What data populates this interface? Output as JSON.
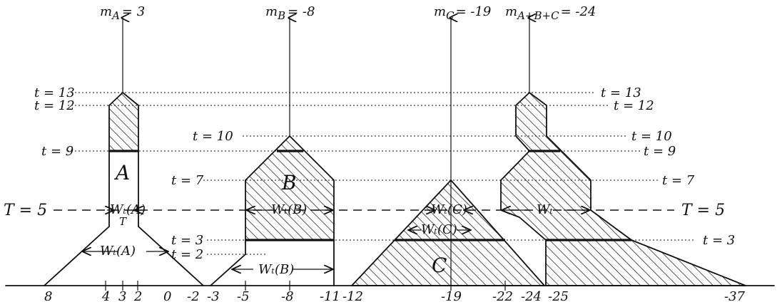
{
  "trees": {
    "A": {
      "label": "A",
      "m_sym": "m",
      "m_sub": "A",
      "m_val": "= 3",
      "wt": "Wₜ(A)",
      "wT": "Wₜ(A)",
      "wT_sub": "T"
    },
    "B": {
      "label": "B",
      "m_sym": "m",
      "m_sub": "B",
      "m_val": "= -8",
      "wt": "Wₜ(B)",
      "wT": "Wₜ(B)"
    },
    "C": {
      "label": "C",
      "m_sym": "m",
      "m_sub": "C",
      "m_val": "= -19",
      "wt": "Wₜ(C)",
      "wT": "Wₜ(C)"
    },
    "ABC": {
      "m_sym": "m",
      "m_sub": "A+B+C",
      "m_val": "= -24",
      "wT": "Wₜ"
    }
  },
  "time_labels": {
    "t13": "t = 13",
    "t12": "t = 12",
    "t10": "t = 10",
    "t9": "t = 9",
    "t7": "t = 7",
    "t3": "t = 3",
    "t2": "t = 2"
  },
  "T_label": "T = 5",
  "axis_ticks": [
    "8",
    "4",
    "3",
    "2",
    "0",
    "-2",
    "-3",
    "-5",
    "-8",
    "-11",
    "-12",
    "-19",
    "-22",
    "-24",
    "-25",
    "-37"
  ]
}
